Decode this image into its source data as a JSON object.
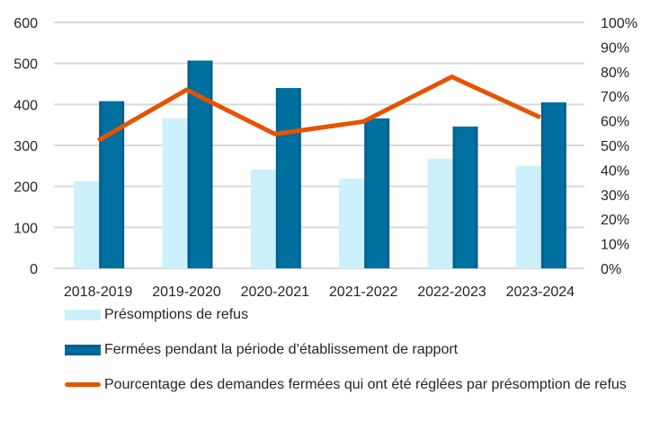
{
  "chart_data": {
    "type": "bar",
    "title": "",
    "xlabel": "",
    "ylabel": "",
    "y2label": "",
    "categories": [
      "2018-2019",
      "2019-2020",
      "2020-2021",
      "2021-2022",
      "2022-2023",
      "2023-2024"
    ],
    "series": [
      {
        "name": "Présomptions de refus",
        "type": "bar",
        "axis": "left",
        "color": "#ccf0fc",
        "values": [
          213,
          366,
          241,
          219,
          268,
          250
        ]
      },
      {
        "name": "Fermées pendant la période d’établissement de rapport",
        "type": "bar",
        "axis": "left",
        "color": "#006d9c",
        "values": [
          408,
          507,
          440,
          366,
          346,
          405
        ]
      },
      {
        "name": "Pourcentage des demandes fermées qui ont été réglées par présomption de refus",
        "type": "line",
        "axis": "right",
        "color": "#e55300",
        "values": [
          52,
          72.6,
          54.6,
          59.7,
          77.9,
          61.4
        ]
      }
    ],
    "ylim": [
      0,
      600
    ],
    "yticks": [
      0,
      100,
      200,
      300,
      400,
      500,
      600
    ],
    "y2lim": [
      0,
      100
    ],
    "y2ticks": [
      0,
      10,
      20,
      30,
      40,
      50,
      60,
      70,
      80,
      90,
      100
    ],
    "y2tick_suffix": "%",
    "grid": true,
    "legend_position": "bottom"
  }
}
